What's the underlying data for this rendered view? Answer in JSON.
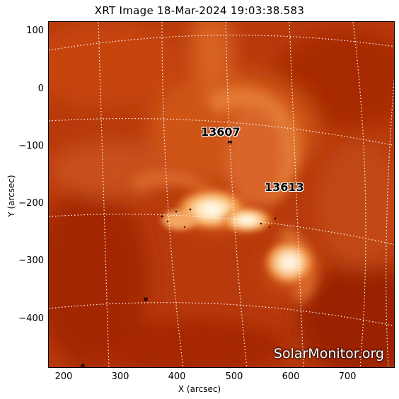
{
  "title": "XRT Image 18-Mar-2024 19:03:38.583",
  "axes": {
    "xlabel": "X (arcsec)",
    "ylabel": "Y (arcsec)",
    "xticks": [
      "200",
      "300",
      "400",
      "500",
      "600",
      "700"
    ],
    "yticks": [
      "100",
      "0",
      "−100",
      "−200",
      "−300",
      "−400"
    ]
  },
  "regions": [
    {
      "id": "13607"
    },
    {
      "id": "13613"
    }
  ],
  "watermark": "SolarMonitor.org",
  "colors": {
    "background": "#ffffff",
    "corona_dark": "#8a1500",
    "corona_mid": "#c8400f",
    "corona_bright": "#ffd9a0",
    "grid": "#ffffff"
  }
}
